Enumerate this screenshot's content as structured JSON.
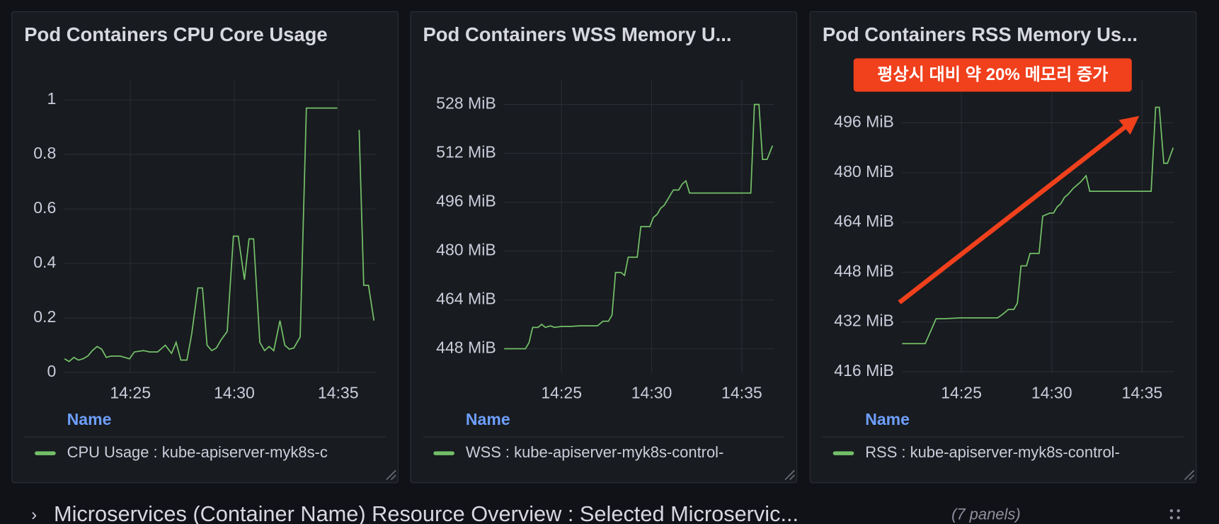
{
  "chart_data": [
    {
      "type": "line",
      "title": "Pod Containers CPU Core Usage",
      "x": [
        21.83,
        22.05,
        22.28,
        22.5,
        22.72,
        22.95,
        23.17,
        23.4,
        23.62,
        23.84,
        24.07,
        24.51,
        24.96,
        25.19,
        25.63,
        25.93,
        26.31,
        26.68,
        26.98,
        27.2,
        27.43,
        27.72,
        27.95,
        28.25,
        28.47,
        28.69,
        28.92,
        29.14,
        29.37,
        29.66,
        29.96,
        30.19,
        30.49,
        30.71,
        30.93,
        31.23,
        31.46,
        31.68,
        31.9,
        32.2,
        32.43,
        32.65,
        32.87,
        33.17,
        33.47,
        34.96,
        35.49,
        36.01,
        36.23,
        36.46,
        36.72
      ],
      "series": [
        {
          "name": "CPU Usage : kube-apiserver-myk8s-c",
          "color": "#73bf69",
          "values": [
            0.05,
            0.04,
            0.055,
            0.045,
            0.05,
            0.06,
            0.08,
            0.095,
            0.085,
            0.055,
            0.06,
            0.06,
            0.05,
            0.075,
            0.08,
            0.075,
            0.075,
            0.1,
            0.07,
            0.11,
            0.045,
            0.045,
            0.14,
            0.31,
            0.31,
            0.1,
            0.08,
            0.09,
            0.12,
            0.15,
            0.5,
            0.5,
            0.34,
            0.49,
            0.49,
            0.11,
            0.08,
            0.095,
            0.08,
            0.19,
            0.1,
            0.085,
            0.09,
            0.13,
            0.97,
            0.97,
            null,
            0.89,
            0.32,
            0.32,
            0.19
          ]
        }
      ],
      "xlim": [
        21.8,
        36.8
      ],
      "xticks": [
        {
          "value": 25,
          "label": "14:25"
        },
        {
          "value": 30,
          "label": "14:30"
        },
        {
          "value": 35,
          "label": "14:35"
        }
      ],
      "ylim": [
        0,
        1.07
      ],
      "yticks": [
        0,
        0.2,
        0.4,
        0.6,
        0.8,
        1
      ],
      "grid": true,
      "legend_title": "Name"
    },
    {
      "type": "line",
      "title": "Pod Containers WSS Memory U...",
      "x": [
        21.82,
        22.5,
        23.0,
        23.2,
        23.4,
        23.7,
        23.9,
        24.1,
        24.4,
        24.6,
        25.0,
        25.5,
        26.0,
        26.5,
        27.0,
        27.3,
        27.6,
        27.8,
        28.0,
        28.3,
        28.5,
        28.7,
        29.2,
        29.4,
        29.9,
        30.1,
        30.3,
        30.5,
        30.7,
        30.9,
        31.2,
        31.5,
        31.7,
        31.9,
        32.1,
        33.0,
        34.0,
        35.0,
        35.5,
        35.7,
        35.95,
        36.15,
        36.4,
        36.7
      ],
      "series": [
        {
          "name": "WSS : kube-apiserver-myk8s-control-",
          "color": "#73bf69",
          "values": [
            448,
            448,
            448,
            450,
            455,
            455,
            456,
            455,
            455.5,
            455,
            455.3,
            455.3,
            455.5,
            455.5,
            455.5,
            457,
            457,
            459,
            473,
            473,
            472,
            478,
            478,
            488,
            488,
            491,
            492,
            494,
            495,
            497,
            500,
            500,
            502,
            503,
            499,
            499,
            499,
            499,
            499,
            528,
            528,
            510,
            510,
            514.5
          ]
        }
      ],
      "xlim": [
        21.8,
        36.8
      ],
      "xticks": [
        {
          "value": 25,
          "label": "14:25"
        },
        {
          "value": 30,
          "label": "14:30"
        },
        {
          "value": 35,
          "label": "14:35"
        }
      ],
      "ylim": [
        440,
        536
      ],
      "yticks": [
        {
          "value": 448,
          "label": "448 MiB"
        },
        {
          "value": 464,
          "label": "464 MiB"
        },
        {
          "value": 480,
          "label": "480 MiB"
        },
        {
          "value": 496,
          "label": "496 MiB"
        },
        {
          "value": 512,
          "label": "512 MiB"
        },
        {
          "value": 528,
          "label": "528 MiB"
        }
      ],
      "grid": true,
      "legend_title": "Name"
    },
    {
      "type": "line",
      "title": "Pod Containers RSS Memory Us...",
      "annotation": "평상시 대비 약 20% 메모리 증가",
      "x": [
        21.72,
        22.5,
        23.0,
        23.3,
        23.6,
        24.0,
        25.0,
        26.0,
        27.0,
        27.3,
        27.6,
        27.9,
        28.1,
        28.3,
        28.6,
        28.8,
        29.3,
        29.5,
        29.9,
        30.1,
        30.3,
        30.5,
        30.7,
        30.9,
        31.2,
        31.4,
        31.6,
        31.9,
        32.1,
        33.0,
        34.0,
        35.0,
        35.5,
        35.75,
        35.95,
        36.2,
        36.4,
        36.72
      ],
      "series": [
        {
          "name": "RSS : kube-apiserver-myk8s-control-",
          "color": "#73bf69",
          "values": [
            425,
            425,
            425,
            429,
            433,
            433,
            433.3,
            433.3,
            433.3,
            434.5,
            436,
            436,
            438,
            450,
            450,
            454,
            454,
            466,
            467,
            467,
            469,
            470,
            472,
            473,
            475,
            476,
            477,
            479,
            474,
            474,
            474,
            474,
            474,
            501,
            501,
            483,
            483,
            488
          ]
        }
      ],
      "xlim": [
        21.7,
        36.75
      ],
      "xticks": [
        {
          "value": 25,
          "label": "14:25"
        },
        {
          "value": 30,
          "label": "14:30"
        },
        {
          "value": 35,
          "label": "14:35"
        }
      ],
      "ylim": [
        415.5,
        510
      ],
      "yticks": [
        {
          "value": 416,
          "label": "416 MiB"
        },
        {
          "value": 432,
          "label": "432 MiB"
        },
        {
          "value": 448,
          "label": "448 MiB"
        },
        {
          "value": 464,
          "label": "464 MiB"
        },
        {
          "value": 480,
          "label": "480 MiB"
        },
        {
          "value": 496,
          "label": "496 MiB"
        }
      ],
      "grid": true,
      "legend_title": "Name"
    }
  ],
  "row": {
    "title": "Microservices (Container Name) Resource Overview : Selected Microservic...",
    "panel_count": "(7 panels)"
  }
}
